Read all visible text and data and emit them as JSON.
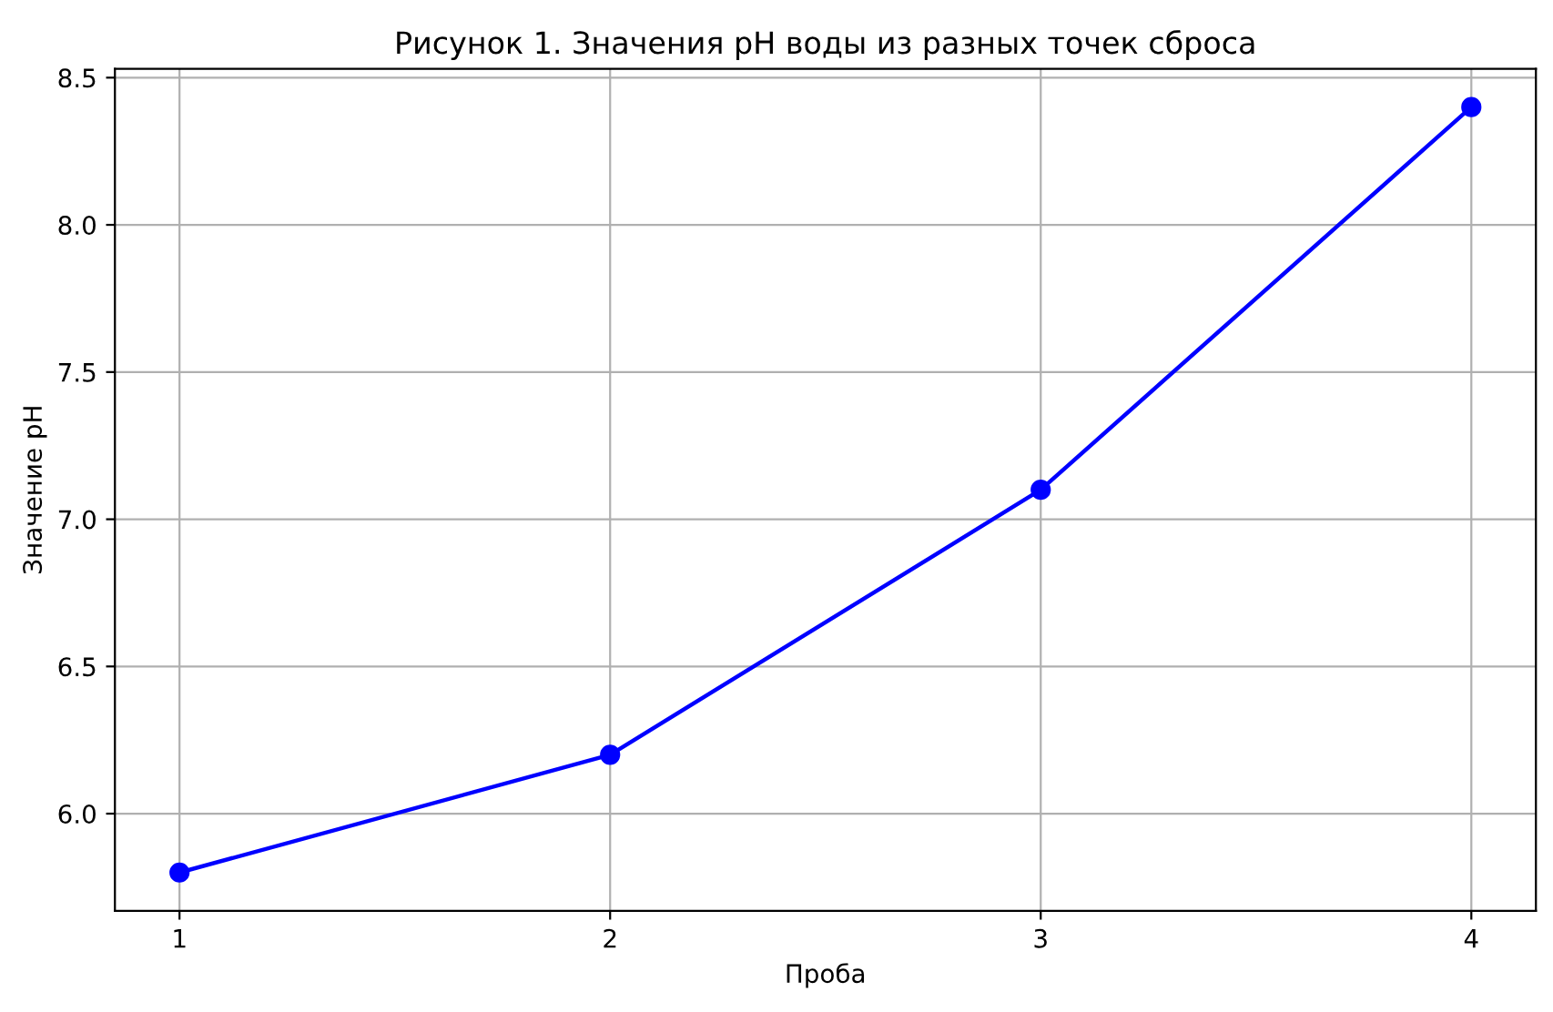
{
  "chart_data": {
    "type": "line",
    "title": "Рисунок 1. Значения pH воды из разных точек сброса",
    "xlabel": "Проба",
    "ylabel": "Значение pH",
    "x": [
      1,
      2,
      3,
      4
    ],
    "series": [
      {
        "color": "#0000ff",
        "values": [
          5.8,
          6.2,
          7.1,
          8.4
        ]
      }
    ],
    "xlim": [
      0.85,
      4.15
    ],
    "ylim": [
      5.67,
      8.53
    ],
    "xticks": [
      1,
      2,
      3,
      4
    ],
    "yticks": [
      {
        "value": 6,
        "label": "6.0"
      },
      {
        "value": 6.5,
        "label": "6.5"
      },
      {
        "value": 7,
        "label": "7.0"
      },
      {
        "value": 7.5,
        "label": "7.5"
      },
      {
        "value": 8,
        "label": "8.0"
      },
      {
        "value": 8.5,
        "label": "8.5"
      }
    ],
    "grid": true,
    "marker": "circle",
    "line_style": "solid"
  }
}
